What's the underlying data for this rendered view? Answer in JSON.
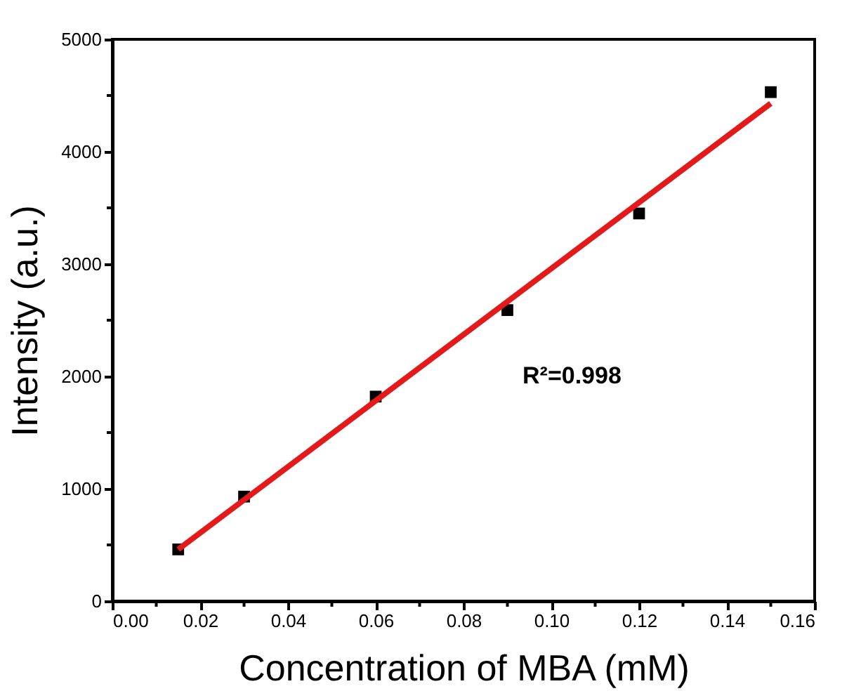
{
  "chart_data": {
    "type": "scatter",
    "xlabel": "Concentration of MBA (mM)",
    "ylabel": "Intensity (a.u.)",
    "x": [
      0.015,
      0.03,
      0.06,
      0.09,
      0.12,
      0.15
    ],
    "series": [
      {
        "type": "scatter",
        "color": "#000000",
        "marker": "square",
        "values": [
          460,
          930,
          1820,
          2590,
          3450,
          4530
        ]
      },
      {
        "type": "line",
        "color": "#e41a1a",
        "x": [
          0.015,
          0.15
        ],
        "values": [
          460,
          4430
        ],
        "line_style": "solid"
      }
    ],
    "xlim": [
      0.0,
      0.16
    ],
    "xticks": [
      {
        "value": 0.0,
        "label": "0.00"
      },
      {
        "value": 0.01,
        "label": null
      },
      {
        "value": 0.02,
        "label": "0.02"
      },
      {
        "value": 0.03,
        "label": null
      },
      {
        "value": 0.04,
        "label": "0.04"
      },
      {
        "value": 0.05,
        "label": null
      },
      {
        "value": 0.06,
        "label": "0.06"
      },
      {
        "value": 0.07,
        "label": null
      },
      {
        "value": 0.08,
        "label": "0.08"
      },
      {
        "value": 0.09,
        "label": null
      },
      {
        "value": 0.1,
        "label": "0.10"
      },
      {
        "value": 0.11,
        "label": null
      },
      {
        "value": 0.12,
        "label": "0.12"
      },
      {
        "value": 0.13,
        "label": null
      },
      {
        "value": 0.14,
        "label": "0.14"
      },
      {
        "value": 0.15,
        "label": null
      },
      {
        "value": 0.16,
        "label": "0.16"
      }
    ],
    "ylim": [
      0,
      5000
    ],
    "yticks": [
      0,
      {
        "value": 500,
        "label": null
      },
      1000,
      {
        "value": 1500,
        "label": null
      },
      2000,
      {
        "value": 2500,
        "label": null
      },
      3000,
      {
        "value": 3500,
        "label": null
      },
      4000,
      {
        "value": 4500,
        "label": null
      },
      5000
    ],
    "annotations": [
      "R²=0.998"
    ],
    "grid": false
  }
}
